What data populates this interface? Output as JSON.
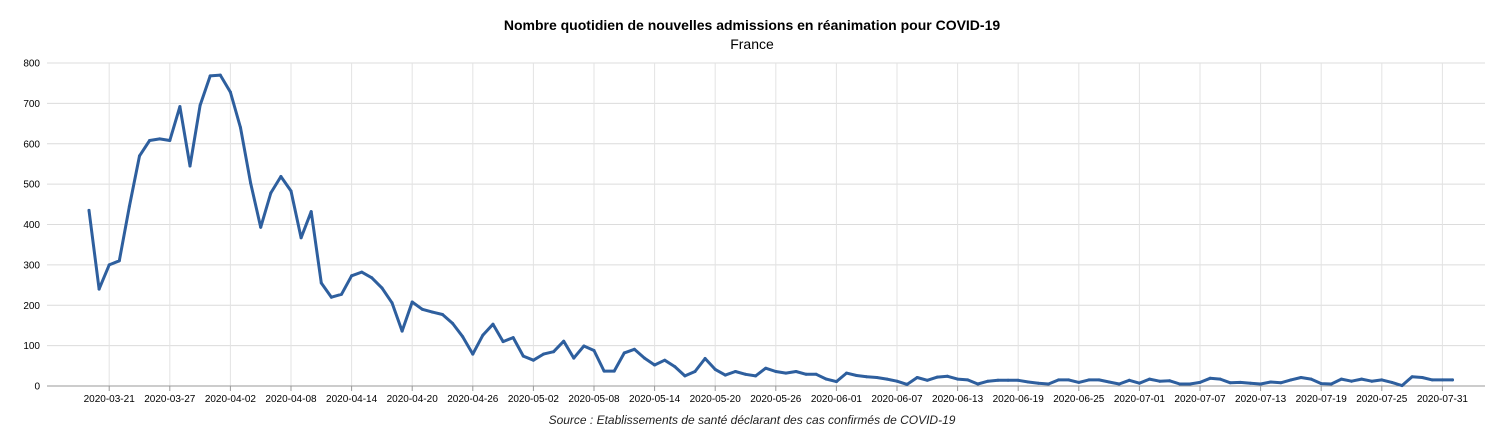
{
  "chart_data": {
    "type": "line",
    "title": "Nombre quotidien de nouvelles admissions en réanimation pour COVID-19",
    "subtitle": "France",
    "source": "Source : Etablissements de santé déclarant des cas confirmés de COVID-19",
    "xlabel": "",
    "ylabel": "",
    "ylim": [
      0,
      800
    ],
    "yticks": [
      0,
      100,
      200,
      300,
      400,
      500,
      600,
      700,
      800
    ],
    "grid": true,
    "x_start": "2020-03-19",
    "x_end": "2020-07-31",
    "xtick_labels": [
      "2020-03-21",
      "2020-03-27",
      "2020-04-02",
      "2020-04-08",
      "2020-04-14",
      "2020-04-20",
      "2020-04-26",
      "2020-05-02",
      "2020-05-08",
      "2020-05-14",
      "2020-05-20",
      "2020-05-26",
      "2020-06-01",
      "2020-06-07",
      "2020-06-13",
      "2020-06-19",
      "2020-06-25",
      "2020-07-01",
      "2020-07-07",
      "2020-07-13",
      "2020-07-19",
      "2020-07-25",
      "2020-07-31"
    ],
    "line_color": "#2e5f9e",
    "series": [
      {
        "values": [
          435,
          240,
          300,
          310,
          445,
          570,
          608,
          612,
          608,
          692,
          545,
          695,
          768,
          770,
          728,
          640,
          503,
          393,
          478,
          519,
          483,
          367,
          432,
          255,
          220,
          227,
          273,
          282,
          268,
          243,
          206,
          136,
          208,
          190,
          183,
          177,
          155,
          122,
          79,
          126,
          153,
          110,
          120,
          74,
          64,
          79,
          85,
          111,
          69,
          99,
          88,
          37,
          37,
          82,
          91,
          69,
          52,
          64,
          48,
          25,
          36,
          68,
          41,
          27,
          36,
          29,
          25,
          44,
          36,
          32,
          36,
          29,
          29,
          17,
          11,
          32,
          26,
          23,
          21,
          17,
          12,
          4,
          21,
          14,
          22,
          24,
          17,
          15,
          5,
          12,
          14,
          14,
          14,
          10,
          7,
          5,
          15,
          15,
          9,
          15,
          15,
          10,
          5,
          14,
          7,
          17,
          12,
          13,
          5,
          5,
          9,
          19,
          17,
          8,
          9,
          7,
          5,
          10,
          8,
          15,
          21,
          17,
          6,
          5,
          17,
          12,
          17,
          12,
          15,
          9,
          1,
          23,
          21,
          15,
          15,
          15
        ]
      }
    ]
  }
}
